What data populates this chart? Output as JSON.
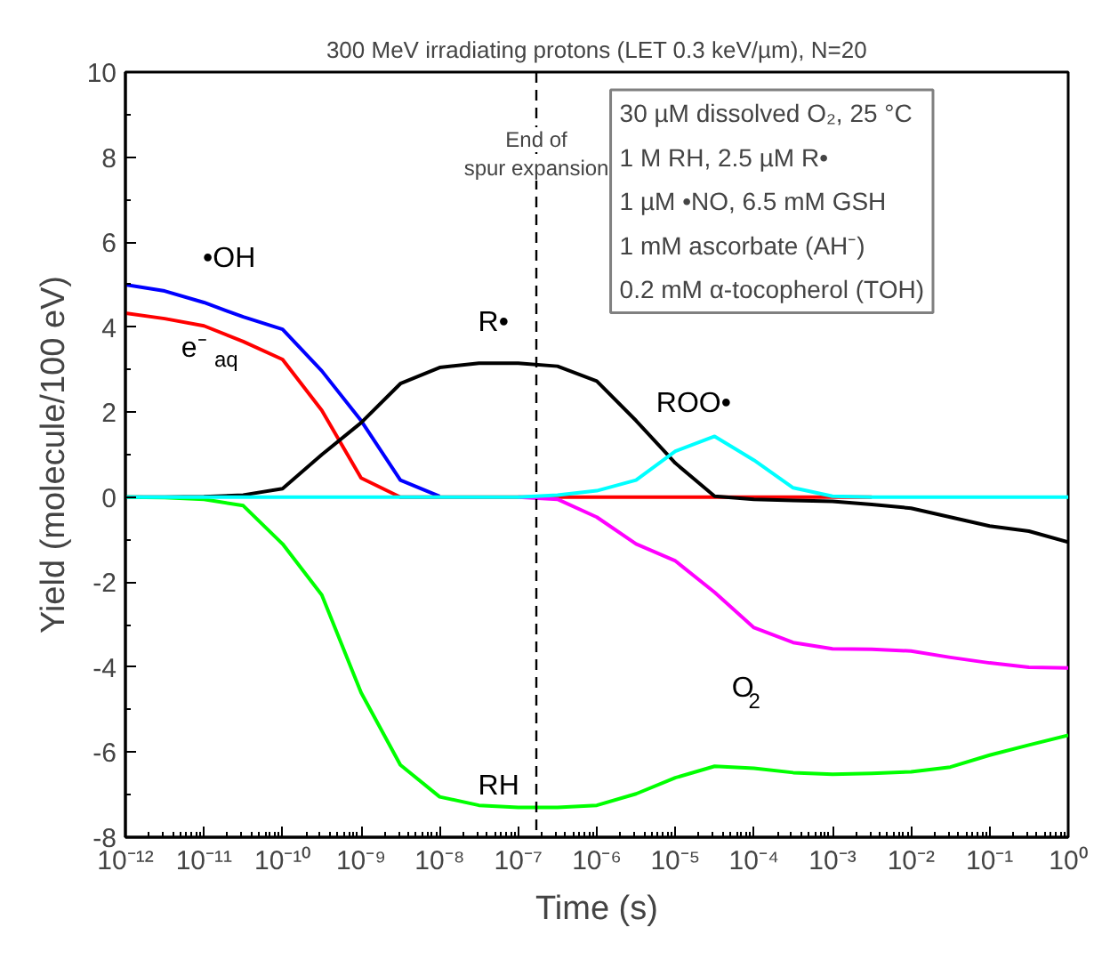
{
  "chart_data": {
    "type": "line",
    "title": "300 MeV irradiating protons (LET 0.3 keV/µm), N=20",
    "xlabel": "Time (s)",
    "ylabel": "Yield (molecule/100 eV)",
    "x": [
      1e-12,
      3.16e-12,
      1e-11,
      3.16e-11,
      1e-10,
      3.16e-10,
      1e-09,
      3.16e-09,
      1e-08,
      3.16e-08,
      1e-07,
      3.16e-07,
      1e-06,
      3.16e-06,
      1e-05,
      3.16e-05,
      0.0001,
      0.000316,
      0.001,
      0.00316,
      0.01,
      0.0316,
      0.1,
      0.316,
      1
    ],
    "series": [
      {
        "name": "•OH",
        "color": "#0000ff",
        "values": [
          5.0,
          4.85,
          4.58,
          4.24,
          3.95,
          2.97,
          1.8,
          0.4,
          0.02,
          null,
          null,
          null,
          null,
          null,
          null,
          null,
          null,
          null,
          null,
          null,
          null,
          null,
          null,
          null,
          null
        ]
      },
      {
        "name": "e⁻$_{aq}$",
        "color": "#ff0000",
        "values": [
          4.33,
          4.2,
          4.03,
          3.66,
          3.24,
          2.04,
          0.45,
          0,
          0,
          0,
          0,
          0,
          0,
          0,
          0,
          0,
          0,
          0,
          0,
          0,
          null,
          null,
          null,
          null,
          null
        ]
      },
      {
        "name": "R•",
        "color": "#000000",
        "values": [
          0,
          0,
          0.01,
          0.05,
          0.2,
          1.0,
          1.75,
          2.67,
          3.05,
          3.15,
          3.15,
          3.08,
          2.73,
          1.8,
          0.8,
          0.02,
          -0.05,
          -0.08,
          -0.1,
          -0.17,
          -0.26,
          -0.47,
          -0.68,
          -0.8,
          -1.06
        ]
      },
      {
        "name": "O$_{2}$",
        "color": "#ff00ff",
        "values": [
          null,
          null,
          null,
          null,
          null,
          null,
          null,
          null,
          null,
          null,
          0,
          -0.05,
          -0.47,
          -1.1,
          -1.5,
          -2.24,
          -3.07,
          -3.42,
          -3.57,
          -3.58,
          -3.62,
          -3.77,
          -3.9,
          -4.0,
          -4.02
        ]
      },
      {
        "name": "RH",
        "color": "#00ff00",
        "values": [
          0,
          -0.01,
          -0.05,
          -0.2,
          -1.1,
          -2.3,
          -4.6,
          -6.3,
          -7.05,
          -7.25,
          -7.3,
          -7.3,
          -7.25,
          -6.98,
          -6.6,
          -6.33,
          -6.38,
          -6.48,
          -6.52,
          -6.5,
          -6.46,
          -6.35,
          -6.07,
          -5.83,
          -5.6
        ]
      },
      {
        "name": "ROO•",
        "color": "#00ffff",
        "values": [
          0,
          0,
          0,
          0,
          0,
          0,
          0,
          0,
          0,
          0,
          0,
          0.05,
          0.15,
          0.4,
          1.08,
          1.43,
          0.87,
          0.22,
          0.02,
          0,
          0,
          0,
          0,
          0,
          0
        ]
      }
    ],
    "log": "x",
    "xlim": [
      1e-12,
      1
    ],
    "ylim": [
      -8,
      10
    ],
    "xticks": [
      {
        "value": 1e-12,
        "label": "10⁻¹²"
      },
      {
        "value": 1e-11,
        "label": "10⁻¹¹"
      },
      {
        "value": 1e-10,
        "label": "10⁻¹⁰"
      },
      {
        "value": 1e-09,
        "label": "10⁻⁹"
      },
      {
        "value": 1e-08,
        "label": "10⁻⁸"
      },
      {
        "value": 1e-07,
        "label": "10⁻⁷"
      },
      {
        "value": 1e-06,
        "label": "10⁻⁶"
      },
      {
        "value": 1e-05,
        "label": "10⁻⁵"
      },
      {
        "value": 0.0001,
        "label": "10⁻⁴"
      },
      {
        "value": 0.001,
        "label": "10⁻³"
      },
      {
        "value": 0.01,
        "label": "10⁻²"
      },
      {
        "value": 0.1,
        "label": "10⁻¹"
      },
      {
        "value": 1,
        "label": "10⁰"
      }
    ],
    "yticks": [
      -8,
      -6,
      -4,
      -2,
      0,
      2,
      4,
      6,
      8,
      10
    ],
    "grid": false,
    "legend": false,
    "marker": "none",
    "line_style": "solid",
    "ref_lines": [
      {
        "axis": "x",
        "value": 1.7e-07,
        "label": "End of spur expansion",
        "color": "#000000",
        "line_style": "dashed"
      }
    ],
    "annotations": [
      "30 µM dissolved O₂, 25 °C",
      "1 M RH, 2.5 µM R•",
      "1 µM •NO, 6.5 mM GSH",
      "1 mM ascorbate (AH⁻)",
      "0.2 mM α-tocopherol (TOH)"
    ]
  }
}
